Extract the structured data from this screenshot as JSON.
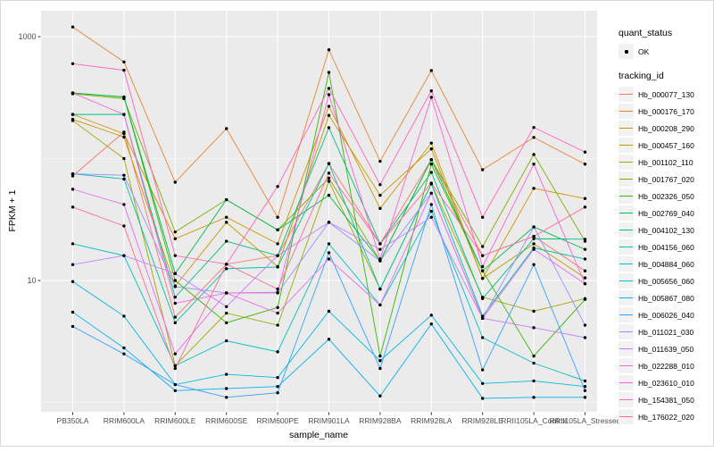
{
  "figure": {
    "y_axis_title": "FPKM + 1",
    "x_axis_title": "sample_name",
    "panel_background": "#EBEBEB",
    "gridline_color": "#FFFFFF",
    "tick_mark_color": "#333333",
    "tick_label_color": "#4D4D4D",
    "point_color": "#000000"
  },
  "legend": {
    "quant_status": {
      "title": "quant_status",
      "items": [
        {
          "label": "OK",
          "marker": "point-icon"
        }
      ]
    },
    "tracking": {
      "title": "tracking_id"
    }
  },
  "chart_data": {
    "type": "line",
    "title": "",
    "xlabel": "sample_name",
    "ylabel": "FPKM + 1",
    "y_scale": "log10",
    "ylim": [
      0.85,
      1650
    ],
    "y_ticks_labeled": [
      10,
      1000
    ],
    "y_gridlines_minor": [
      1,
      100
    ],
    "grid": true,
    "legend_position": "right",
    "marker_status": "OK",
    "categories": [
      "PB350LA",
      "RRIM600LA",
      "RRIM600LE",
      "RRIM600SE",
      "RRIM600PE",
      "RRIM901LA",
      "RRIM928BA",
      "RRIM928LA",
      "RRIM928LE",
      "RRII105LA_Control",
      "RRII105LA_Stressed"
    ],
    "series": [
      {
        "name": "Hb_000077_130",
        "color": "#F8766D",
        "values": [
          72,
          165,
          5.0,
          13.6,
          16,
          91,
          20,
          98,
          16,
          23,
          12
        ]
      },
      {
        "name": "Hb_000176_170",
        "color": "#EA8331",
        "values": [
          1200,
          620,
          64,
          176,
          33,
          780,
          95,
          527,
          81,
          149,
          90
        ]
      },
      {
        "name": "Hb_000208_290",
        "color": "#D89000",
        "values": [
          230,
          160,
          22,
          33,
          20,
          268,
          39,
          134,
          10.4,
          57,
          47
        ]
      },
      {
        "name": "Hb_000457_160",
        "color": "#C09B00",
        "values": [
          210,
          150,
          9,
          30,
          13,
          226,
          50,
          120,
          10.4,
          20,
          10.5
        ]
      },
      {
        "name": "Hb_001102_110",
        "color": "#A3A500",
        "values": [
          205,
          100,
          2.0,
          5.4,
          4.3,
          65,
          8.5,
          62,
          7.3,
          5.6,
          7.1
        ]
      },
      {
        "name": "Hb_001767_020",
        "color": "#7CAE00",
        "values": [
          340,
          310,
          25,
          46,
          26,
          69,
          14.5,
          98,
          19,
          108,
          21
        ]
      },
      {
        "name": "Hb_002326_050",
        "color": "#39B600",
        "values": [
          345,
          320,
          10,
          4.5,
          6.0,
          509,
          2.4,
          90,
          12,
          2.4,
          7.0
        ]
      },
      {
        "name": "Hb_002769_040",
        "color": "#00BB4E",
        "values": [
          345,
          320,
          11.4,
          46,
          26,
          50,
          14.5,
          98,
          12,
          27.5,
          18
        ]
      },
      {
        "name": "Hb_004102_130",
        "color": "#00BF7D",
        "values": [
          230,
          230,
          7.3,
          21,
          16,
          179,
          20,
          77,
          7.1,
          22,
          21.8
        ]
      },
      {
        "name": "Hb_004156_060",
        "color": "#00C1A3",
        "values": [
          75,
          68,
          4.5,
          12.5,
          12.9,
          91,
          8.5,
          62,
          5.1,
          18.5,
          15
        ]
      },
      {
        "name": "Hb_004884_060",
        "color": "#00BFC4",
        "values": [
          20,
          16,
          2.0,
          3.2,
          2.6,
          20,
          6.3,
          37,
          3.4,
          2.1,
          1.5
        ]
      },
      {
        "name": "Hb_005656_060",
        "color": "#00BAE0",
        "values": [
          9.8,
          5.1,
          1.4,
          1.7,
          1.6,
          5.6,
          2.2,
          5.2,
          1.43,
          1.5,
          1.35
        ]
      },
      {
        "name": "Hb_005867_080",
        "color": "#00B0F6",
        "values": [
          5.5,
          2.8,
          1.25,
          1.3,
          1.35,
          3.3,
          1.13,
          4.4,
          1.08,
          1.1,
          1.1
        ]
      },
      {
        "name": "Hb_006026_040",
        "color": "#35A2FF",
        "values": [
          4.2,
          2.5,
          1.4,
          1.1,
          1.2,
          16.9,
          1.9,
          42,
          1.85,
          13.5,
          1.25
        ]
      },
      {
        "name": "Hb_011021_030",
        "color": "#9590FF",
        "values": [
          75,
          73,
          8.9,
          7.9,
          7.9,
          30,
          14.5,
          52,
          4.9,
          27.5,
          4.3
        ]
      },
      {
        "name": "Hb_011639_050",
        "color": "#C77CFF",
        "values": [
          13.5,
          16,
          11.4,
          6.1,
          16,
          30,
          18,
          33,
          4.9,
          4.1,
          3.4
        ]
      },
      {
        "name": "Hb_022288_010",
        "color": "#E76BF3",
        "values": [
          56,
          42,
          2.5,
          7.9,
          5.4,
          15,
          6.3,
          52,
          4.9,
          18,
          9.4
        ]
      },
      {
        "name": "Hb_023610_010",
        "color": "#FA62DB",
        "values": [
          345,
          230,
          6.5,
          7.9,
          8.0,
          334,
          15,
          318,
          13,
          90,
          9.4
        ]
      },
      {
        "name": "Hb_154381_050",
        "color": "#FF62BC",
        "values": [
          600,
          530,
          16,
          13.6,
          59,
          376,
          61,
          359,
          33,
          180,
          113
        ]
      },
      {
        "name": "Hb_176022_020",
        "color": "#FF6A98",
        "values": [
          40,
          28,
          1.9,
          13.6,
          8.5,
          76,
          20,
          63,
          16,
          23,
          40
        ]
      }
    ]
  }
}
